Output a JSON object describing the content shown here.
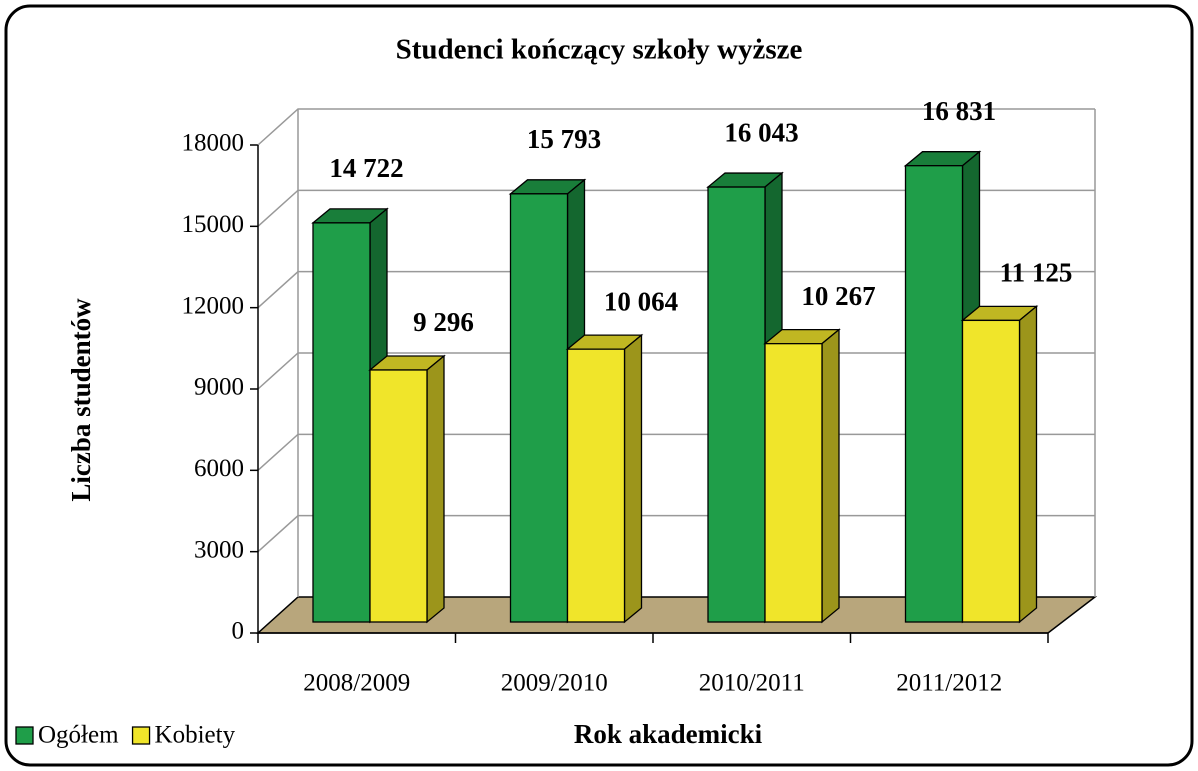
{
  "chart_data": {
    "type": "bar3d",
    "title": "Studenci kończący szkoły wyższe",
    "y_label": "Liczba studentów",
    "x_label": "Rok akademicki",
    "categories": [
      "2008/2009",
      "2009/2010",
      "2010/2011",
      "2011/2012"
    ],
    "series": [
      {
        "name": "Ogółem",
        "color": "#1f9e49",
        "values": [
          14722,
          15793,
          16043,
          16831
        ],
        "value_labels": [
          "14 722",
          "15 793",
          "16 043",
          "16 831"
        ]
      },
      {
        "name": "Kobiety",
        "color": "#f0e52a",
        "values": [
          9296,
          10064,
          10267,
          11125
        ],
        "value_labels": [
          "9 296",
          "10 064",
          "10 267",
          "11 125"
        ]
      }
    ],
    "ylim": [
      0,
      18000
    ],
    "yticks": [
      0,
      3000,
      6000,
      9000,
      12000,
      15000,
      18000
    ],
    "grid": true,
    "legend": "bottom-left"
  }
}
